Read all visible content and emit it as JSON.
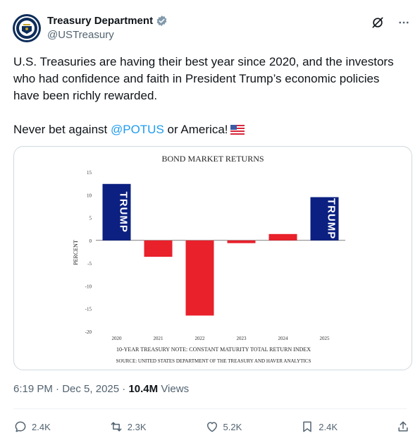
{
  "account": {
    "display_name": "Treasury Department",
    "handle": "@USTreasury"
  },
  "tweet": {
    "line1": "U.S. Treasuries are having their best year since 2020, and the investors who had confidence and faith in President Trump’s economic policies have been richly rewarded.",
    "line2_prefix": "Never bet against ",
    "mention": "@POTUS",
    "line2_suffix": " or America!",
    "emoji": "us-flag-icon"
  },
  "meta": {
    "time": "6:19 PM",
    "separator": " · ",
    "date": "Dec 5, 2025",
    "views_count": "10.4M",
    "views_label": " Views"
  },
  "actions": {
    "replies": "2.4K",
    "reposts": "2.3K",
    "likes": "5.2K",
    "bookmarks": "2.4K"
  },
  "colors": {
    "accent": "#1d9bf0",
    "bar_red": "#e8212b",
    "bar_navy": "#0b2080"
  },
  "chart_data": {
    "type": "bar",
    "title": "BOND MARKET RETURNS",
    "ylabel": "PERCENT",
    "xlabel": "10-YEAR TREASURY NOTE: CONSTANT MATURITY TOTAL RETURN INDEX",
    "source": "SOURCE: UNITED STATES DEPARTMENT OF THE TREASURY AND HAVER ANALYTICS",
    "categories": [
      "2020",
      "2021",
      "2022",
      "2023",
      "2024",
      "2025"
    ],
    "values": [
      12.4,
      -3.6,
      -16.5,
      -0.6,
      1.4,
      9.5
    ],
    "ylim": [
      -20,
      15
    ],
    "yticks": [
      "15",
      "10",
      "5",
      "0",
      "-5",
      "-10",
      "-15",
      "-20"
    ],
    "highlight_label": "TRUMP",
    "highlight_categories": [
      "2020",
      "2025"
    ]
  }
}
